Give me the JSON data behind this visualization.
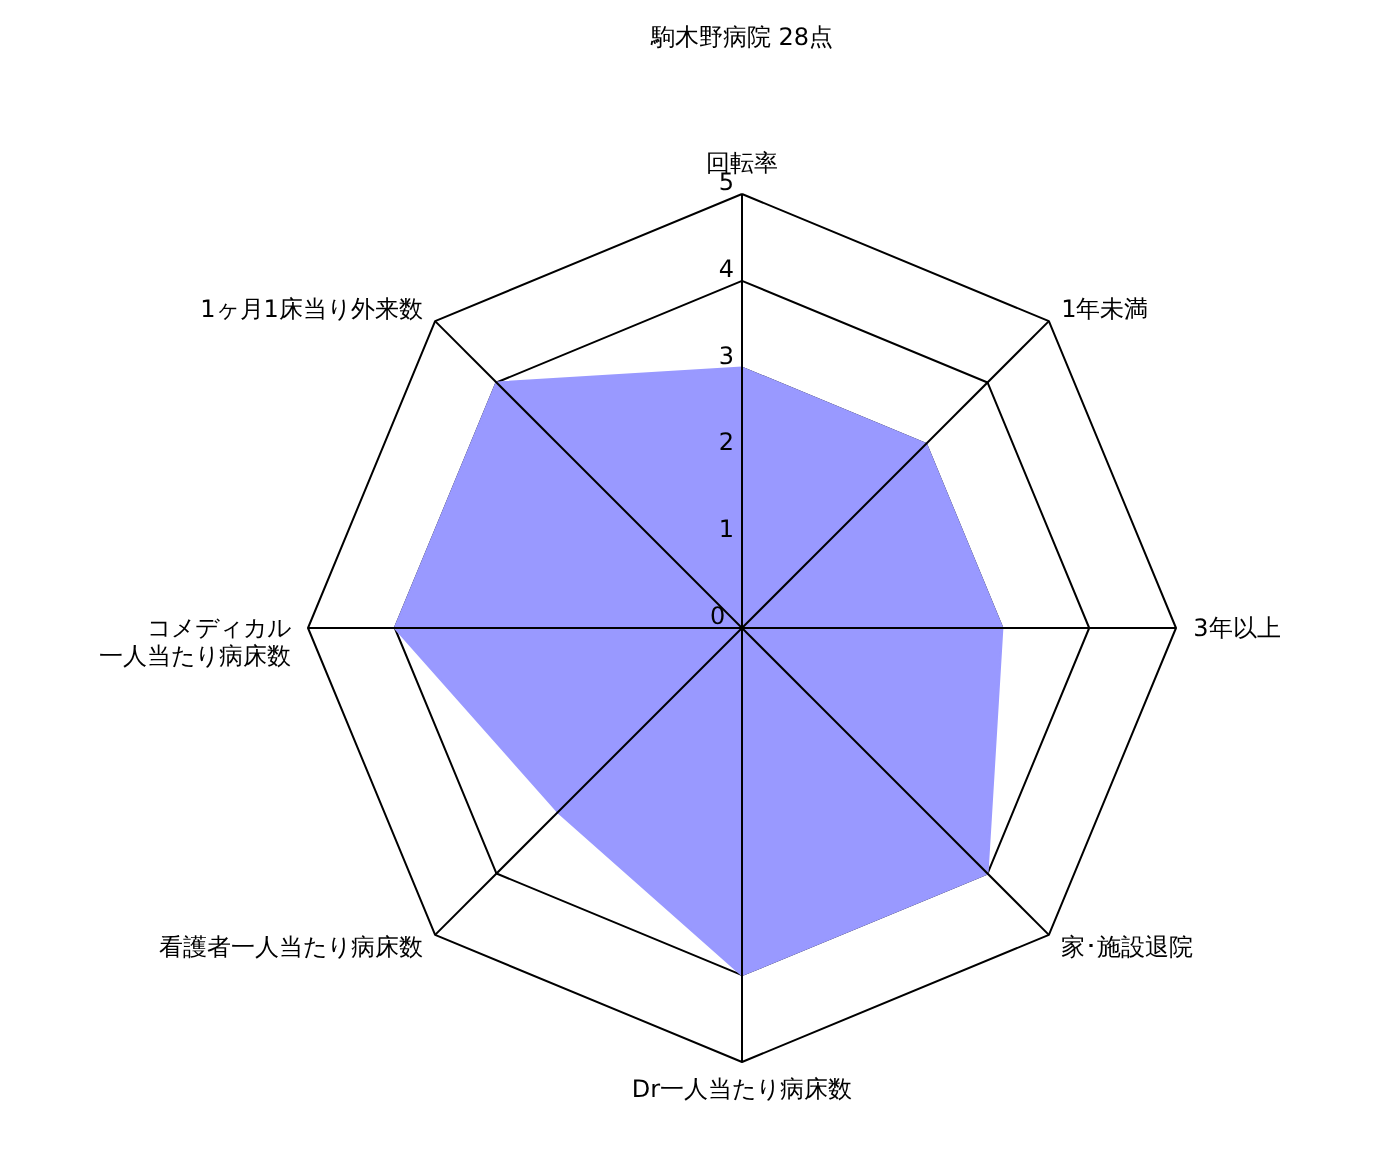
{
  "chart_data": {
    "type": "radar",
    "title": "駒木野病院 28点",
    "categories": [
      "回転率",
      "1年未満",
      "3年以上",
      "家･施設退院",
      "Dr一人当たり病床数",
      "看護者一人当たり病床数",
      "コメディカル一人当たり病床数",
      "1ヶ月1床当り外来数"
    ],
    "series": [
      {
        "color": "#9999ff",
        "values": [
          3,
          3,
          3,
          4,
          4,
          3,
          4,
          4
        ]
      }
    ],
    "ylim": [
      0,
      5
    ],
    "yticks": [
      0,
      1,
      2,
      3,
      4,
      5
    ],
    "grid": true
  }
}
